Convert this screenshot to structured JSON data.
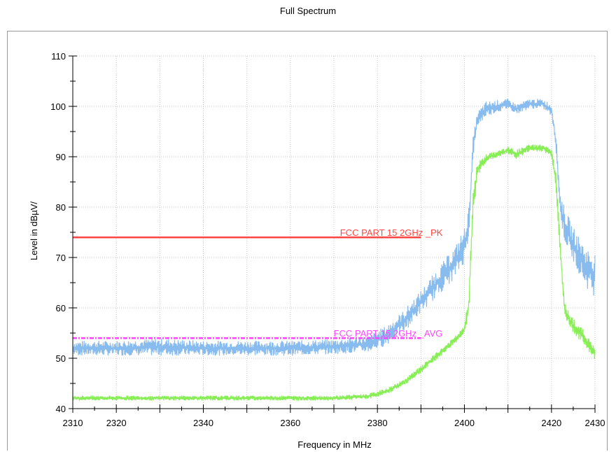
{
  "chart_data": {
    "type": "line",
    "title": "Full Spectrum",
    "xlabel": "Frequency in MHz",
    "ylabel": "Level in dBµV/",
    "xlim": [
      2310,
      2430
    ],
    "ylim": [
      40,
      110
    ],
    "xticks": [
      2310,
      2320,
      2340,
      2360,
      2380,
      2400,
      2420,
      2430
    ],
    "yticks": [
      40,
      50,
      60,
      70,
      80,
      90,
      100,
      110
    ],
    "grid": true,
    "limits": [
      {
        "name": "FCC PART 15 2GHz _PK",
        "value": 74,
        "x": [
          2310,
          2390
        ],
        "color": "#ff4444"
      },
      {
        "name": "FCC PART 15 2GHz _AVG",
        "value": 54,
        "x": [
          2310,
          2390
        ],
        "color": "#ff44ff"
      }
    ],
    "series": [
      {
        "color": "#88bbee",
        "x": [
          2310,
          2320,
          2330,
          2340,
          2350,
          2360,
          2370,
          2378,
          2382,
          2386,
          2390,
          2394,
          2398,
          2400,
          2401,
          2402,
          2403,
          2405,
          2410,
          2412,
          2415,
          2418,
          2420,
          2421,
          2422,
          2423,
          2425,
          2428,
          2430
        ],
        "min": [
          50.5,
          50.5,
          50.5,
          50.5,
          50.5,
          50.5,
          50.8,
          51.2,
          52.5,
          55,
          59,
          62.5,
          66,
          69,
          74,
          90,
          96,
          98,
          99.5,
          98.5,
          99.5,
          99.5,
          98,
          92,
          78,
          73,
          69,
          64,
          62
        ],
        "max": [
          53.5,
          53.5,
          54,
          53.5,
          53.5,
          53.5,
          53.8,
          54.5,
          56.5,
          59.5,
          63.5,
          68,
          72.5,
          76,
          80,
          94,
          99,
          101,
          101.5,
          100.5,
          101.5,
          101.5,
          100.5,
          95,
          83,
          80,
          76,
          72,
          71
        ]
      },
      {
        "color": "#88ee55",
        "x": [
          2310,
          2320,
          2340,
          2360,
          2370,
          2378,
          2382,
          2386,
          2390,
          2394,
          2398,
          2400,
          2401,
          2402,
          2403,
          2405,
          2410,
          2412,
          2415,
          2418,
          2420,
          2421,
          2422,
          2423,
          2425,
          2428,
          2430
        ],
        "min": [
          41.6,
          41.6,
          41.6,
          41.6,
          41.6,
          41.9,
          42.8,
          44.5,
          47,
          50,
          53,
          55,
          58,
          78,
          86,
          89,
          90.5,
          89.5,
          91,
          91,
          90,
          84,
          70,
          58,
          55,
          52,
          49.5
        ],
        "max": [
          42.6,
          42.6,
          42.6,
          42.6,
          42.6,
          43,
          44,
          45.8,
          48.5,
          51.5,
          54.5,
          56.5,
          63,
          84,
          89,
          90.5,
          92,
          91.5,
          92.5,
          92.5,
          91.5,
          87,
          74,
          61,
          58,
          55,
          52
        ]
      }
    ]
  }
}
